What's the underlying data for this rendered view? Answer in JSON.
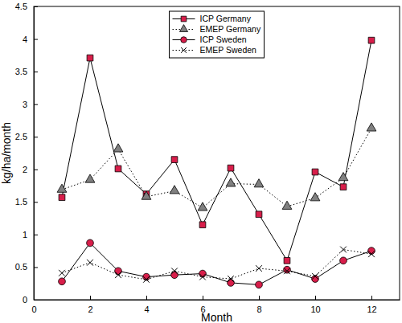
{
  "chart_data": {
    "type": "line",
    "x_label": "Month",
    "y_label": "kg/ha/month",
    "x": [
      1,
      2,
      3,
      4,
      5,
      6,
      7,
      8,
      9,
      10,
      11,
      12
    ],
    "xlim": [
      0,
      13
    ],
    "xticks": [
      0,
      2,
      4,
      6,
      8,
      10,
      12
    ],
    "ylim": [
      0,
      4.5
    ],
    "yticks": [
      0,
      0.5,
      1,
      1.5,
      2,
      2.5,
      3,
      3.5,
      4,
      4.5
    ],
    "legend": "top",
    "series": [
      {
        "name": "ICP Germany",
        "color": "#d81e4a",
        "marker": "square",
        "line_style": "solid",
        "values": [
          1.57,
          3.71,
          2.01,
          1.62,
          2.15,
          1.15,
          2.02,
          1.31,
          0.6,
          1.96,
          1.73,
          3.98
        ]
      },
      {
        "name": "EMEP Germany",
        "color": "#808080",
        "marker": "triangle",
        "line_style": "dotted",
        "values": [
          1.69,
          1.84,
          2.31,
          1.58,
          1.67,
          1.41,
          1.78,
          1.77,
          1.43,
          1.56,
          1.87,
          2.63
        ]
      },
      {
        "name": "ICP Sweden",
        "color": "#d81e4a",
        "marker": "circle",
        "line_style": "solid",
        "values": [
          0.28,
          0.87,
          0.44,
          0.35,
          0.38,
          0.4,
          0.26,
          0.23,
          0.46,
          0.32,
          0.6,
          0.75
        ]
      },
      {
        "name": "EMEP Sweden",
        "color": "#000000",
        "marker": "x",
        "line_style": "dotted",
        "values": [
          0.41,
          0.57,
          0.38,
          0.31,
          0.44,
          0.35,
          0.32,
          0.48,
          0.44,
          0.36,
          0.77,
          0.7
        ]
      }
    ]
  }
}
